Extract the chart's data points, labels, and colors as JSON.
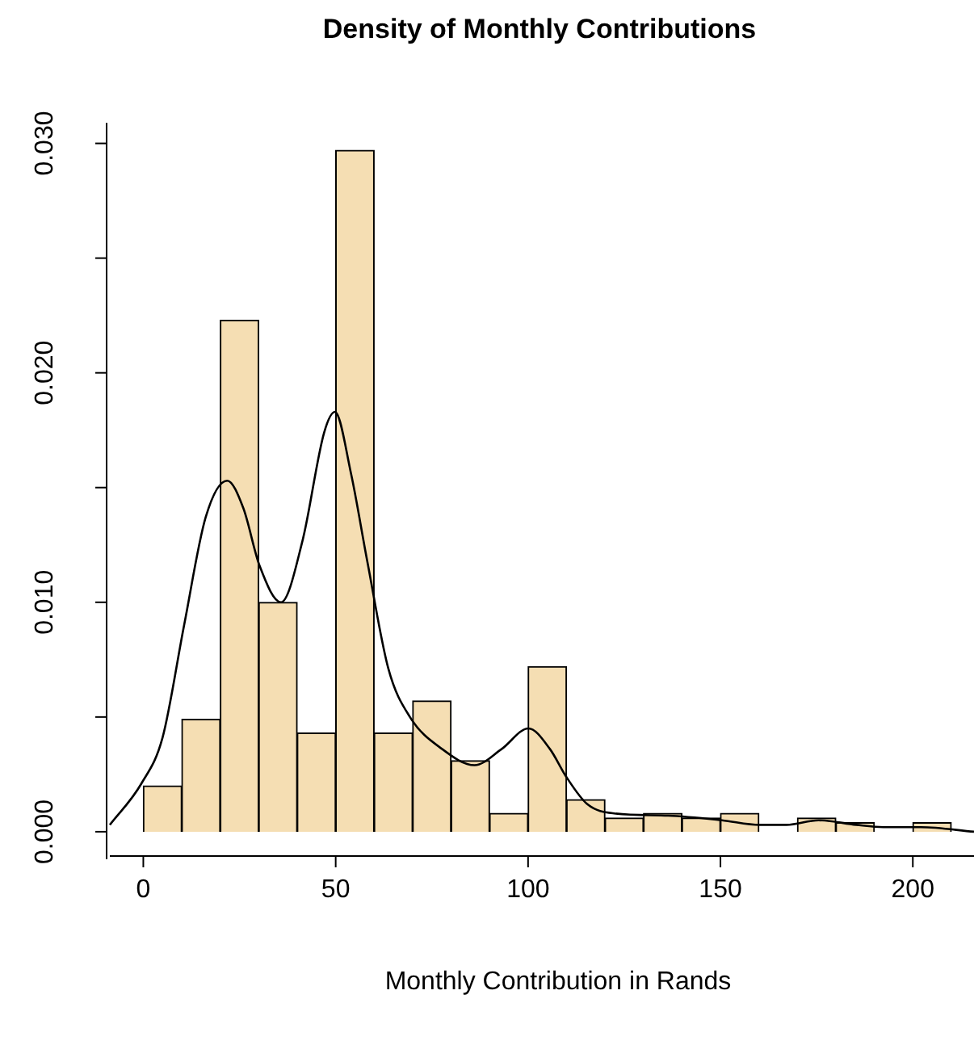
{
  "chart_data": {
    "type": "histogram",
    "title": "Density of Monthly Contributions",
    "xlabel": "Monthly Contribution in Rands",
    "bins": [
      0,
      10,
      20,
      30,
      40,
      50,
      60,
      70,
      80,
      90,
      100,
      110,
      120,
      130,
      140,
      150,
      160,
      170,
      180,
      190,
      200,
      210
    ],
    "values": [
      0.002,
      0.0049,
      0.0223,
      0.01,
      0.0043,
      0.0297,
      0.0043,
      0.0057,
      0.0031,
      0.0008,
      0.0072,
      0.0014,
      0.0006,
      0.0008,
      0.0006,
      0.0008,
      0,
      0.0006,
      0.0004,
      0,
      0.0004
    ],
    "color": "#f5deb3",
    "series": [
      {
        "type": "line",
        "color": "#000000",
        "x": [
          -8.7,
          -0.5,
          5.0,
          10.6,
          16.2,
          21.8,
          26.0,
          30.2,
          35.8,
          41.4,
          47.0,
          49.8,
          54.0,
          58.2,
          63.7,
          69.3,
          77.7,
          86.1,
          93.1,
          100.1,
          105.7,
          109.9,
          115.4,
          122.4,
          136.4,
          150.4,
          160.2,
          167.2,
          175.5,
          185.3,
          192.3,
          202.1,
          215.9
        ],
        "values": [
          0.0003,
          0.0021,
          0.0041,
          0.009,
          0.0137,
          0.0153,
          0.0141,
          0.0116,
          0.01,
          0.0127,
          0.0174,
          0.0183,
          0.0156,
          0.0118,
          0.0071,
          0.005,
          0.0036,
          0.0029,
          0.0036,
          0.0045,
          0.0036,
          0.0024,
          0.0012,
          0.0008,
          0.0007,
          0.0005,
          0.0003,
          0.0003,
          0.0005,
          0.0003,
          0.0002,
          0.0002,
          0.0
        ]
      }
    ],
    "xlim": [
      -8.7,
      215.9
    ],
    "ylim": [
      -0.0012,
      0.0309
    ],
    "xticks": [
      0,
      50,
      100,
      150,
      200
    ],
    "yticks": [
      {
        "value": 0,
        "label": "0.000"
      },
      {
        "value": 0.005,
        "label": null
      },
      {
        "value": 0.01,
        "label": "0.010"
      },
      {
        "value": 0.015,
        "label": null
      },
      {
        "value": 0.02,
        "label": "0.020"
      },
      {
        "value": 0.025,
        "label": null
      },
      {
        "value": 0.03,
        "label": "0.030"
      }
    ],
    "grid": false,
    "legend": false,
    "marker": "none",
    "line_style": "solid"
  }
}
